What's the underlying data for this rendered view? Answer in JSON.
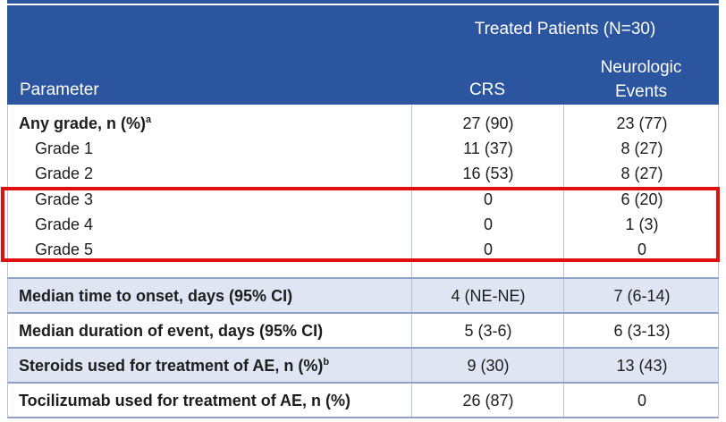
{
  "header": {
    "group_label": "Treated Patients (N=30)",
    "param_label": "Parameter",
    "crs_label": "CRS",
    "neuro_label_line1": "Neurologic",
    "neuro_label_line2": "Events"
  },
  "grade_rows": [
    {
      "param": "Any grade, n (%)",
      "sup": "a",
      "crs": "27 (90)",
      "neuro": "23 (77)"
    },
    {
      "param": "Grade 1",
      "crs": "11 (37)",
      "neuro": "8 (27)"
    },
    {
      "param": "Grade 2",
      "crs": "16 (53)",
      "neuro": "8 (27)"
    },
    {
      "param": "Grade 3",
      "crs": "0",
      "neuro": "6 (20)"
    },
    {
      "param": "Grade 4",
      "crs": "0",
      "neuro": "1 (3)"
    },
    {
      "param": "Grade 5",
      "crs": "0",
      "neuro": "0"
    }
  ],
  "summary_rows": [
    {
      "param": "Median time to onset, days (95% CI)",
      "crs": "4 (NE-NE)",
      "neuro": "7 (6-14)"
    },
    {
      "param": "Median duration of event, days (95% CI)",
      "crs": "5 (3-6)",
      "neuro": "6 (3-13)"
    },
    {
      "param": "Steroids used for treatment of AE, n (%)",
      "sup": "b",
      "crs": "9 (30)",
      "neuro": "13 (43)"
    },
    {
      "param": "Tocilizumab used for treatment of AE, n (%)",
      "crs": "26 (87)",
      "neuro": "0"
    }
  ],
  "colors": {
    "header_bg": "#2c55a0",
    "shaded_row": "#dfe5f2",
    "highlight": "#e01010"
  }
}
